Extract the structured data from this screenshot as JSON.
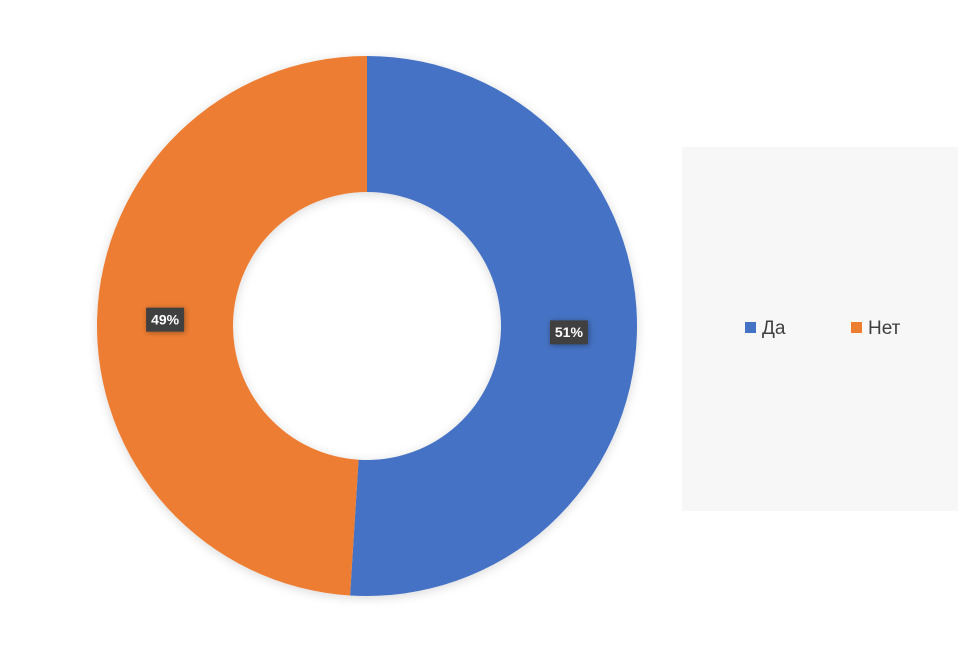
{
  "chart_data": {
    "type": "donut",
    "categories": [
      "Да",
      "Нет"
    ],
    "values": [
      51,
      49
    ],
    "value_labels": [
      "51%",
      "49%"
    ],
    "colors": [
      "#4472c4",
      "#ed7d31"
    ]
  }
}
